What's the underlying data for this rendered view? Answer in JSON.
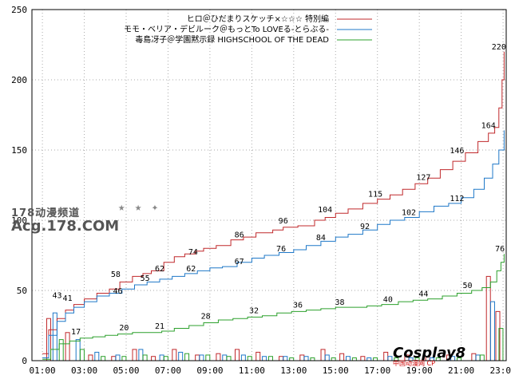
{
  "chart_data": {
    "type": "line",
    "title": "",
    "xlabel": "",
    "ylabel": "",
    "ylim": [
      0,
      250
    ],
    "yticks": [
      0,
      50,
      100,
      150,
      200,
      250
    ],
    "x_tick_labels": [
      "01:00",
      "03:00",
      "05:00",
      "07:00",
      "09:00",
      "11:00",
      "13:00",
      "15:00",
      "17:00",
      "19:00",
      "21:00",
      "23:00"
    ],
    "grid": true,
    "legend": "top-right",
    "series": [
      {
        "name": "ヒロ＠ひだまりスケッチ×☆☆☆ 特別編",
        "color": "#c0282b",
        "points": [
          [
            1,
            5
          ],
          [
            1.3,
            22
          ],
          [
            1.7,
            30
          ],
          [
            2.1,
            36
          ],
          [
            2.5,
            40
          ],
          [
            3,
            44
          ],
          [
            3.6,
            48
          ],
          [
            4.2,
            51
          ],
          [
            4.7,
            56
          ],
          [
            5.3,
            60
          ],
          [
            5.8,
            62
          ],
          [
            6.2,
            64
          ],
          [
            6.8,
            70
          ],
          [
            7.3,
            74
          ],
          [
            7.8,
            76
          ],
          [
            8.3,
            78
          ],
          [
            8.7,
            80
          ],
          [
            9.3,
            82
          ],
          [
            10,
            86
          ],
          [
            10.6,
            88
          ],
          [
            11.2,
            91
          ],
          [
            12,
            93
          ],
          [
            12.5,
            95
          ],
          [
            13.2,
            96
          ],
          [
            14,
            100
          ],
          [
            14.5,
            102
          ],
          [
            15,
            105
          ],
          [
            15.6,
            108
          ],
          [
            16.3,
            112
          ],
          [
            17,
            115
          ],
          [
            17.6,
            118
          ],
          [
            18.2,
            122
          ],
          [
            18.8,
            126
          ],
          [
            19.4,
            130
          ],
          [
            20,
            136
          ],
          [
            20.6,
            142
          ],
          [
            21.2,
            148
          ],
          [
            21.8,
            156
          ],
          [
            22.3,
            162
          ],
          [
            22.6,
            166
          ],
          [
            22.8,
            180
          ],
          [
            22.95,
            200
          ],
          [
            23.05,
            220
          ]
        ],
        "labels": [
          [
            1.7,
            43,
            "43"
          ],
          [
            4.5,
            58,
            "58"
          ],
          [
            6.6,
            62,
            "62"
          ],
          [
            8.2,
            74,
            "74"
          ],
          [
            10.4,
            86,
            "86"
          ],
          [
            12.5,
            96,
            "96"
          ],
          [
            14.5,
            104,
            "104"
          ],
          [
            16.9,
            115,
            "115"
          ],
          [
            19.2,
            127,
            "127"
          ],
          [
            20.8,
            146,
            "146"
          ],
          [
            22.3,
            164,
            "164"
          ],
          [
            22.8,
            220,
            "220"
          ]
        ],
        "bars": [
          [
            1.3,
            30
          ],
          [
            2.2,
            20
          ],
          [
            3.3,
            4
          ],
          [
            4.4,
            3
          ],
          [
            5.4,
            8
          ],
          [
            6.3,
            3
          ],
          [
            7.3,
            8
          ],
          [
            8.4,
            4
          ],
          [
            9.4,
            5
          ],
          [
            10.3,
            8
          ],
          [
            11.3,
            6
          ],
          [
            12.4,
            3
          ],
          [
            13.4,
            4
          ],
          [
            14.4,
            8
          ],
          [
            15.3,
            5
          ],
          [
            16.3,
            3
          ],
          [
            17.4,
            6
          ],
          [
            18.4,
            4
          ],
          [
            19.4,
            3
          ],
          [
            20.4,
            4
          ],
          [
            21.6,
            5
          ],
          [
            22.3,
            60
          ],
          [
            22.75,
            35
          ]
        ]
      },
      {
        "name": "モモ・ベリア・デビルーク＠もっとTo LOVEる-とらぶる-",
        "color": "#1f78c8",
        "points": [
          [
            1,
            2
          ],
          [
            1.3,
            18
          ],
          [
            1.7,
            28
          ],
          [
            2.1,
            34
          ],
          [
            2.5,
            38
          ],
          [
            3,
            42
          ],
          [
            3.6,
            46
          ],
          [
            4.2,
            48
          ],
          [
            4.8,
            51
          ],
          [
            5.4,
            54
          ],
          [
            6,
            56
          ],
          [
            6.6,
            58
          ],
          [
            7.2,
            60
          ],
          [
            7.8,
            62
          ],
          [
            8.4,
            64
          ],
          [
            9,
            66
          ],
          [
            9.6,
            67
          ],
          [
            10.3,
            70
          ],
          [
            11,
            73
          ],
          [
            11.6,
            75
          ],
          [
            12.3,
            77
          ],
          [
            13,
            79
          ],
          [
            13.6,
            82
          ],
          [
            14.3,
            85
          ],
          [
            15,
            88
          ],
          [
            15.6,
            90
          ],
          [
            16.3,
            93
          ],
          [
            17,
            97
          ],
          [
            17.6,
            100
          ],
          [
            18.3,
            102
          ],
          [
            19,
            106
          ],
          [
            19.7,
            110
          ],
          [
            20.4,
            112
          ],
          [
            21,
            116
          ],
          [
            21.6,
            122
          ],
          [
            22.1,
            130
          ],
          [
            22.5,
            140
          ],
          [
            22.8,
            150
          ],
          [
            23.05,
            164
          ]
        ],
        "labels": [
          [
            2.2,
            41,
            "41"
          ],
          [
            4.6,
            46,
            "46"
          ],
          [
            5.9,
            55,
            "55"
          ],
          [
            8.1,
            62,
            "62"
          ],
          [
            10.4,
            67,
            "67"
          ],
          [
            12.4,
            76,
            "76"
          ],
          [
            14.3,
            84,
            "84"
          ],
          [
            16.4,
            92,
            "92"
          ],
          [
            18.5,
            102,
            "102"
          ],
          [
            20.8,
            112,
            "112"
          ]
        ],
        "bars": [
          [
            1.6,
            34
          ],
          [
            2.7,
            15
          ],
          [
            3.6,
            6
          ],
          [
            4.6,
            4
          ],
          [
            5.7,
            8
          ],
          [
            6.7,
            4
          ],
          [
            7.6,
            6
          ],
          [
            8.6,
            4
          ],
          [
            9.7,
            4
          ],
          [
            10.6,
            4
          ],
          [
            11.6,
            3
          ],
          [
            12.6,
            3
          ],
          [
            13.6,
            3
          ],
          [
            14.6,
            4
          ],
          [
            15.6,
            3
          ],
          [
            16.6,
            2
          ],
          [
            17.6,
            3
          ],
          [
            18.6,
            2
          ],
          [
            19.6,
            2
          ],
          [
            20.6,
            3
          ],
          [
            21.8,
            4
          ],
          [
            22.5,
            42
          ]
        ]
      },
      {
        "name": "毒島冴子＠学園黙示録 HIGHSCHOOL OF THE DEAD",
        "color": "#2ca02c",
        "points": [
          [
            1,
            1
          ],
          [
            1.4,
            8
          ],
          [
            1.8,
            12
          ],
          [
            2.3,
            14
          ],
          [
            2.8,
            16
          ],
          [
            3.4,
            17
          ],
          [
            4,
            18
          ],
          [
            4.6,
            19
          ],
          [
            5.3,
            20
          ],
          [
            6,
            20
          ],
          [
            6.7,
            21
          ],
          [
            7.3,
            23
          ],
          [
            8,
            25
          ],
          [
            8.7,
            27
          ],
          [
            9.4,
            29
          ],
          [
            10.1,
            30
          ],
          [
            10.8,
            31
          ],
          [
            11.5,
            32
          ],
          [
            12.2,
            34
          ],
          [
            12.9,
            35
          ],
          [
            13.6,
            36
          ],
          [
            14.3,
            37
          ],
          [
            15,
            38
          ],
          [
            15.8,
            38
          ],
          [
            16.5,
            39
          ],
          [
            17.2,
            40
          ],
          [
            18,
            42
          ],
          [
            18.7,
            43
          ],
          [
            19.4,
            44
          ],
          [
            20.1,
            46
          ],
          [
            20.8,
            48
          ],
          [
            21.5,
            50
          ],
          [
            22,
            52
          ],
          [
            22.4,
            56
          ],
          [
            22.7,
            64
          ],
          [
            22.9,
            70
          ],
          [
            23.05,
            76
          ]
        ],
        "labels": [
          [
            2.6,
            17,
            "17"
          ],
          [
            4.9,
            20,
            "20"
          ],
          [
            6.6,
            21,
            "21"
          ],
          [
            8.8,
            28,
            "28"
          ],
          [
            11.1,
            32,
            "32"
          ],
          [
            13.2,
            36,
            "36"
          ],
          [
            15.2,
            38,
            "38"
          ],
          [
            17.5,
            40,
            "40"
          ],
          [
            19.2,
            44,
            "44"
          ],
          [
            21.3,
            50,
            "50"
          ],
          [
            22.85,
            76,
            "76"
          ]
        ],
        "bars": [
          [
            1.9,
            15
          ],
          [
            2.9,
            8
          ],
          [
            3.9,
            3
          ],
          [
            4.9,
            3
          ],
          [
            5.9,
            4
          ],
          [
            6.9,
            3
          ],
          [
            7.9,
            5
          ],
          [
            8.9,
            4
          ],
          [
            9.9,
            3
          ],
          [
            10.9,
            3
          ],
          [
            11.9,
            3
          ],
          [
            12.9,
            2
          ],
          [
            13.9,
            2
          ],
          [
            14.9,
            2
          ],
          [
            15.9,
            2
          ],
          [
            16.9,
            2
          ],
          [
            17.9,
            2
          ],
          [
            18.9,
            2
          ],
          [
            19.9,
            2
          ],
          [
            20.9,
            2
          ],
          [
            22,
            4
          ],
          [
            22.9,
            23
          ]
        ]
      }
    ]
  },
  "watermarks": {
    "left_line1": "178动漫频道",
    "left_line2": "Acg.178.COM",
    "right_line1": "Cosplay8",
    "right_line2": "中国动漫网 CP"
  }
}
